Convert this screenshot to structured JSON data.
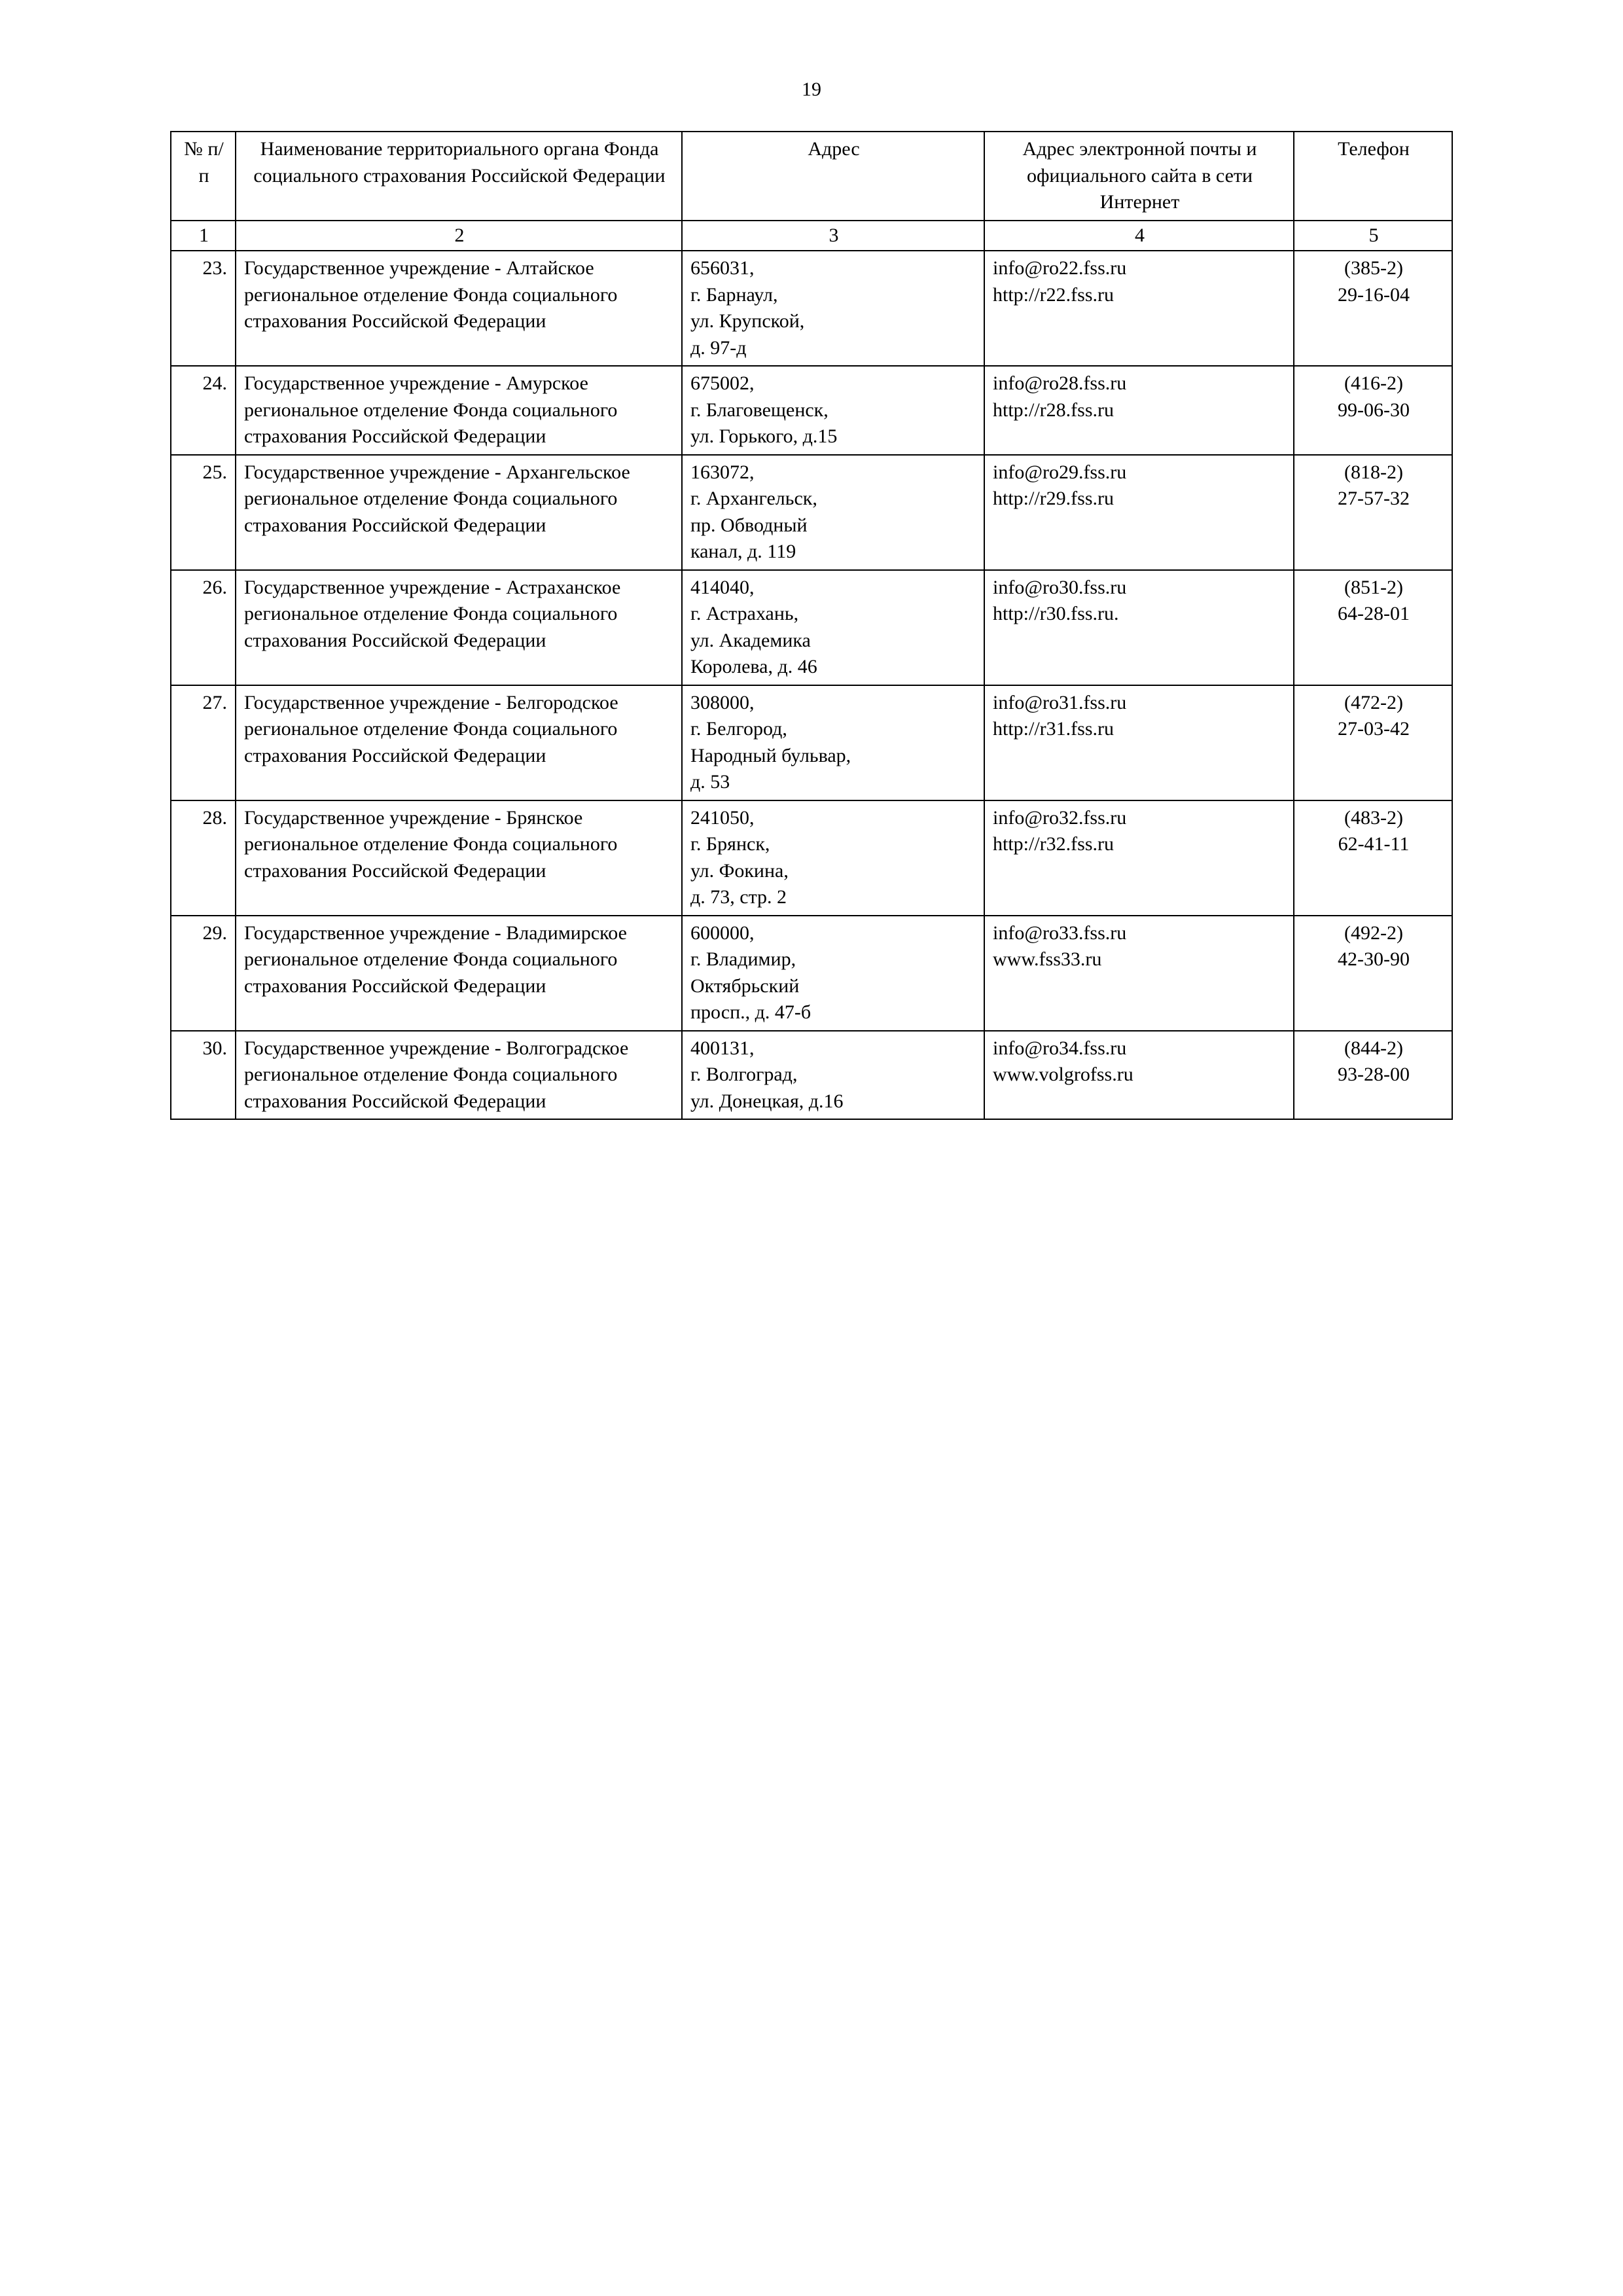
{
  "page_number": "19",
  "table": {
    "columns": {
      "c1": "№ п/п",
      "c2": "Наименование территориального органа Фонда социального страхования Российской Федерации",
      "c3": "Адрес",
      "c4": "Адрес электронной почты и официального сайта в сети Интернет",
      "c5": "Телефон"
    },
    "col_numbers": {
      "c1": "1",
      "c2": "2",
      "c3": "3",
      "c4": "4",
      "c5": "5"
    },
    "rows": [
      {
        "num": "23.",
        "name": "Государственное учреждение - Алтайское региональное отделение Фонда социального страхования Российской Федерации",
        "addr": [
          "656031,",
          "г. Барнаул,",
          "ул. Крупской,",
          "д. 97-д"
        ],
        "web": [
          "info@ro22.fss.ru",
          "http://r22.fss.ru"
        ],
        "phone": [
          "(385-2)",
          "29-16-04"
        ]
      },
      {
        "num": "24.",
        "name": "Государственное учреждение - Амурское региональное отделение Фонда социального страхования Российской Федерации",
        "addr": [
          "675002,",
          "г. Благовещенск,",
          "ул. Горького, д.15"
        ],
        "web": [
          "info@ro28.fss.ru",
          "http://r28.fss.ru"
        ],
        "phone": [
          "(416-2)",
          "99-06-30"
        ]
      },
      {
        "num": "25.",
        "name": "Государственное учреждение - Архангельское региональное отделение Фонда социального страхования Российской Федерации",
        "addr": [
          "163072,",
          "г. Архангельск,",
          "пр. Обводный",
          "канал, д. 119"
        ],
        "web": [
          "info@ro29.fss.ru",
          "http://r29.fss.ru"
        ],
        "phone": [
          "(818-2)",
          "27-57-32"
        ]
      },
      {
        "num": "26.",
        "name": "Государственное учреждение - Астраханское региональное отделение Фонда социального страхования Российской Федерации",
        "addr": [
          "414040,",
          "г. Астрахань,",
          "ул. Академика",
          "Королева, д. 46"
        ],
        "web": [
          "info@ro30.fss.ru",
          "http://r30.fss.ru."
        ],
        "phone": [
          "(851-2)",
          "64-28-01"
        ]
      },
      {
        "num": "27.",
        "name": "Государственное учреждение - Белгородское региональное отделение Фонда социального страхования Российской Федерации",
        "addr": [
          "308000,",
          "г. Белгород,",
          "Народный бульвар,",
          "д. 53"
        ],
        "web": [
          "info@ro31.fss.ru",
          "http://r31.fss.ru"
        ],
        "phone": [
          "(472-2)",
          "27-03-42"
        ]
      },
      {
        "num": "28.",
        "name": "Государственное учреждение - Брянское региональное отделение Фонда социального страхования Российской Федерации",
        "addr": [
          "241050,",
          "г. Брянск,",
          "ул. Фокина,",
          "д. 73, стр. 2"
        ],
        "web": [
          "info@ro32.fss.ru",
          "http://r32.fss.ru"
        ],
        "phone": [
          "(483-2)",
          "62-41-11"
        ]
      },
      {
        "num": "29.",
        "name": "Государственное учреждение - Владимирское региональное отделение Фонда социального страхования Российской Федерации",
        "addr": [
          "600000,",
          "г. Владимир,",
          "Октябрьский",
          "просп., д. 47-б"
        ],
        "web": [
          "info@ro33.fss.ru",
          "www.fss33.ru"
        ],
        "phone": [
          "(492-2)",
          "42-30-90"
        ]
      },
      {
        "num": "30.",
        "name": "Государственное учреждение - Волгоградское региональное отделение Фонда социального страхования Российской Федерации",
        "addr": [
          "400131,",
          "г. Волгоград,",
          "ул. Донецкая, д.16"
        ],
        "web": [
          "info@ro34.fss.ru",
          "www.volgrofss.ru"
        ],
        "phone": [
          "(844-2)",
          "93-28-00"
        ]
      }
    ]
  }
}
